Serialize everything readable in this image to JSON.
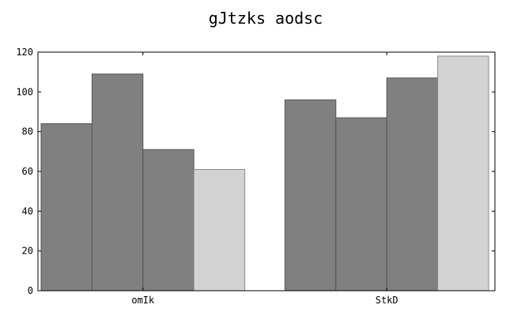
{
  "chart_data": {
    "type": "bar",
    "title": "gJtzks aodsc",
    "xlabel": "",
    "ylabel": "",
    "categories": [
      "omIk",
      "StkD"
    ],
    "ylim": [
      0,
      120
    ],
    "yticks": [
      0,
      20,
      40,
      60,
      80,
      100,
      120
    ],
    "grid": false,
    "legend": "none",
    "series": [
      {
        "values": [
          84,
          96
        ],
        "color": "#808080",
        "edge": "#555555"
      },
      {
        "values": [
          109,
          87
        ],
        "color": "#808080",
        "edge": "#555555"
      },
      {
        "values": [
          71,
          107
        ],
        "color": "#808080",
        "edge": "#555555"
      },
      {
        "values": [
          61,
          118
        ],
        "color": "#d3d3d3",
        "edge": "#8a8a8a"
      }
    ]
  }
}
